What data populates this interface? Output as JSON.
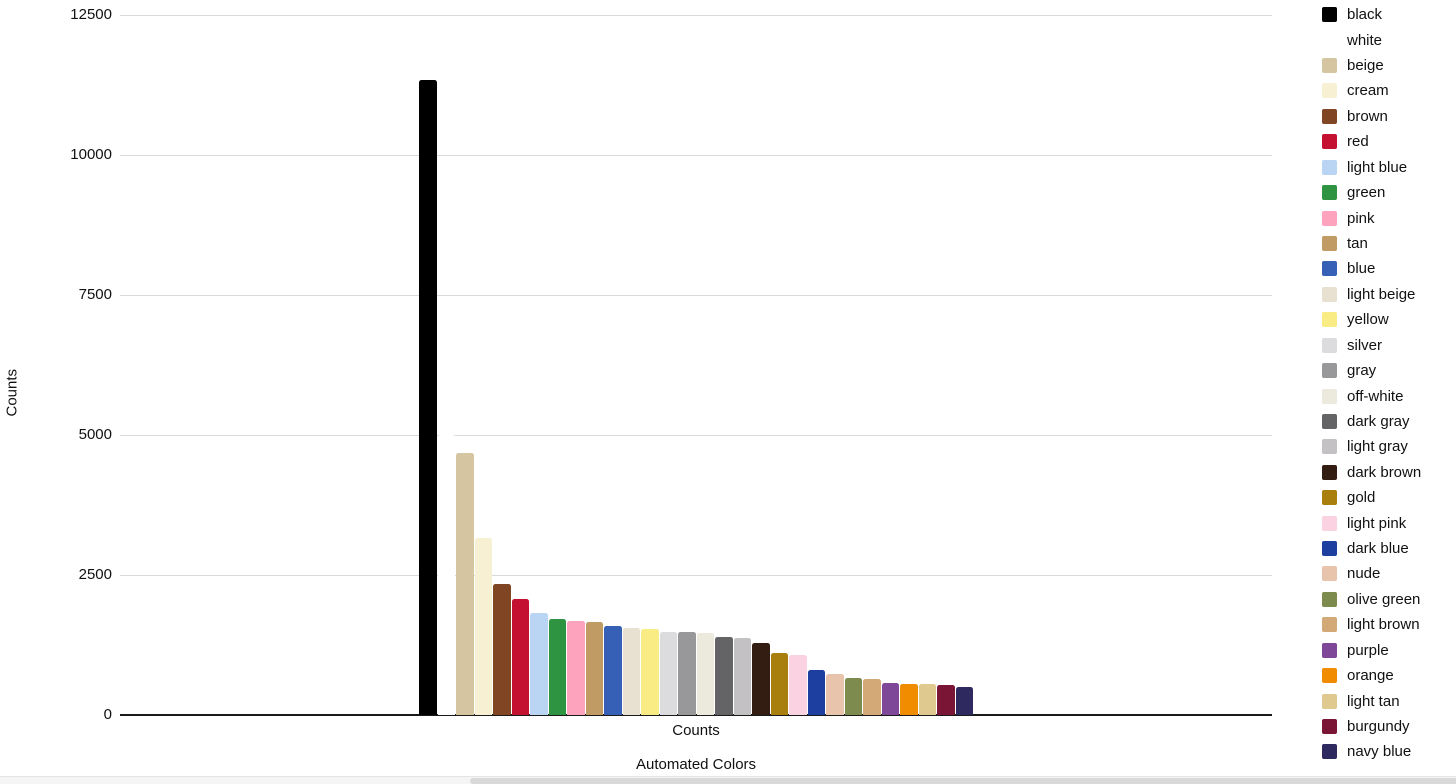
{
  "figure": {
    "y_axis_title": "Counts",
    "x_tick_label": "Counts",
    "x_axis_title": "Automated Colors"
  },
  "chart_data": {
    "type": "bar",
    "title": "",
    "xlabel": "Automated Colors",
    "ylabel": "Counts",
    "categories": [
      "Counts"
    ],
    "ylim": [
      0,
      12500
    ],
    "yticks": [
      0,
      2500,
      5000,
      7500,
      10000,
      12500
    ],
    "grid": true,
    "legend_position": "right",
    "grid_color": "#d9d9d9",
    "axis_line_color": "#1a1a1a",
    "series": [
      {
        "name": "black",
        "color": "#000000",
        "value": 11340
      },
      {
        "name": "white",
        "color": "#ffffff",
        "value": 5000
      },
      {
        "name": "beige",
        "color": "#d5c5a1",
        "value": 4680
      },
      {
        "name": "cream",
        "color": "#f7f0d3",
        "value": 3160
      },
      {
        "name": "brown",
        "color": "#804523",
        "value": 2340
      },
      {
        "name": "red",
        "color": "#c41132",
        "value": 2070
      },
      {
        "name": "light blue",
        "color": "#bad4f4",
        "value": 1820
      },
      {
        "name": "green",
        "color": "#2e9442",
        "value": 1715
      },
      {
        "name": "pink",
        "color": "#fda3bd",
        "value": 1680
      },
      {
        "name": "tan",
        "color": "#c09b63",
        "value": 1665
      },
      {
        "name": "blue",
        "color": "#3560b5",
        "value": 1585
      },
      {
        "name": "light beige",
        "color": "#e8e0d1",
        "value": 1550
      },
      {
        "name": "yellow",
        "color": "#faec85",
        "value": 1530
      },
      {
        "name": "silver",
        "color": "#dcdcde",
        "value": 1490
      },
      {
        "name": "gray",
        "color": "#98989a",
        "value": 1475
      },
      {
        "name": "off-white",
        "color": "#ebeadc",
        "value": 1460
      },
      {
        "name": "dark gray",
        "color": "#646466",
        "value": 1400
      },
      {
        "name": "light gray",
        "color": "#c4c1c4",
        "value": 1380
      },
      {
        "name": "dark brown",
        "color": "#331d12",
        "value": 1280
      },
      {
        "name": "gold",
        "color": "#a87f0c",
        "value": 1110
      },
      {
        "name": "light pink",
        "color": "#fad2e1",
        "value": 1065
      },
      {
        "name": "dark blue",
        "color": "#1c3fa0",
        "value": 810
      },
      {
        "name": "nude",
        "color": "#e9c4ad",
        "value": 725
      },
      {
        "name": "olive green",
        "color": "#7d8b4e",
        "value": 665
      },
      {
        "name": "light brown",
        "color": "#d3a978",
        "value": 645
      },
      {
        "name": "purple",
        "color": "#7e4798",
        "value": 580
      },
      {
        "name": "orange",
        "color": "#f18c00",
        "value": 550
      },
      {
        "name": "light tan",
        "color": "#dfc98f",
        "value": 545
      },
      {
        "name": "burgundy",
        "color": "#7b1535",
        "value": 540
      },
      {
        "name": "navy blue",
        "color": "#2e2a5f",
        "value": 505
      }
    ]
  }
}
